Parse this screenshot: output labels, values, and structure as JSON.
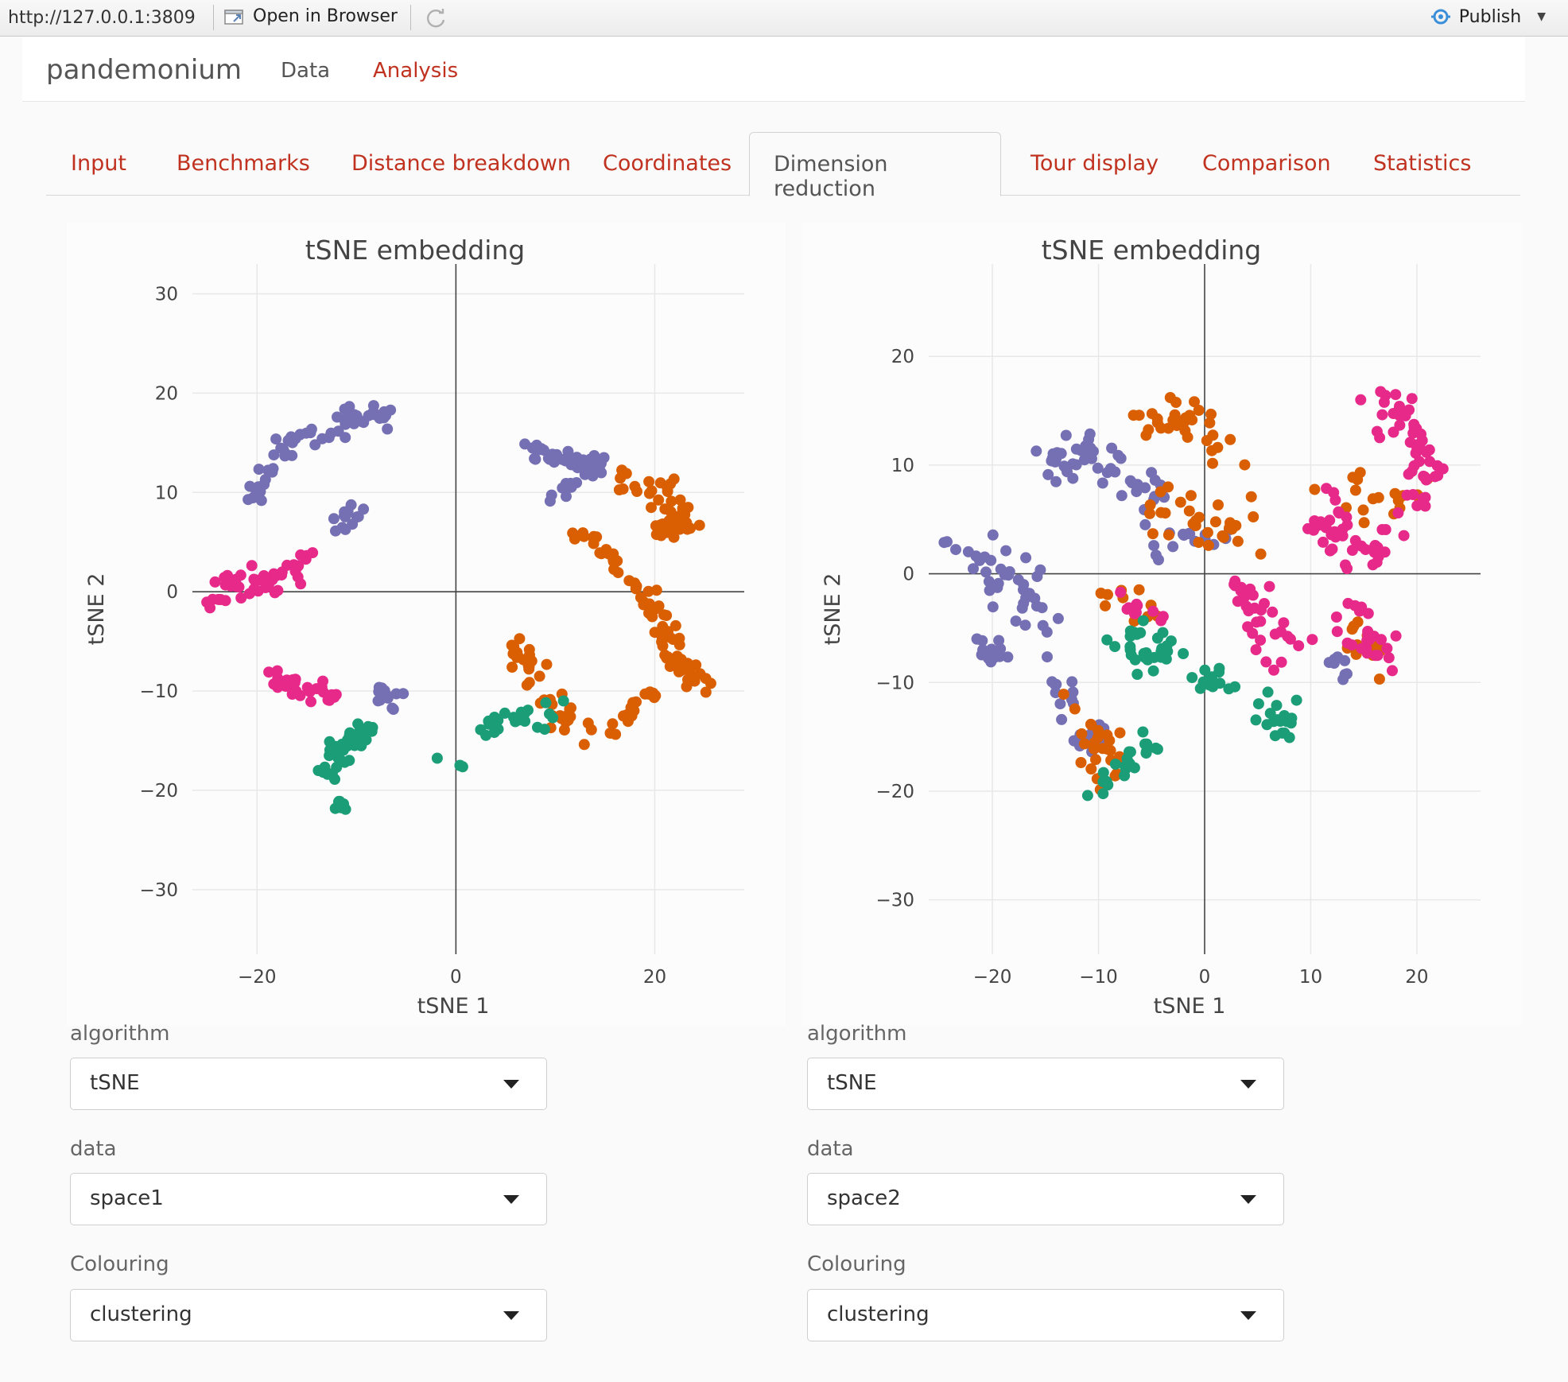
{
  "viewer": {
    "url": "http://127.0.0.1:3809",
    "open_in_browser": "Open in Browser",
    "publish": "Publish"
  },
  "app": {
    "brand": "pandemonium",
    "nav": [
      {
        "label": "Data",
        "active": false
      },
      {
        "label": "Analysis",
        "active": true
      }
    ]
  },
  "tabs": [
    {
      "label": "Input",
      "active": false
    },
    {
      "label": "Benchmarks",
      "active": false
    },
    {
      "label": "Distance breakdown",
      "active": false
    },
    {
      "label": "Coordinates",
      "active": false
    },
    {
      "label": "Dimension reduction",
      "active": true
    },
    {
      "label": "Tour display",
      "active": false
    },
    {
      "label": "Comparison",
      "active": false
    },
    {
      "label": "Statistics",
      "active": false
    }
  ],
  "colors": {
    "purple": "#7570b3",
    "orange": "#d95f02",
    "green": "#1b9e77",
    "pink": "#e7298a",
    "link_red": "#c0321f"
  },
  "chart_data": [
    {
      "type": "scatter",
      "title": "tSNE embedding",
      "xlabel": "tSNE 1",
      "ylabel": "tSNE 2",
      "xlim": [
        -26.5,
        29
      ],
      "ylim": [
        -36.5,
        33
      ],
      "xticks": [
        -20,
        0,
        20
      ],
      "yticks": [
        -30,
        -20,
        -10,
        0,
        10,
        20,
        30
      ],
      "grid": true,
      "legend": "none",
      "clusters": [
        {
          "color": "#7570b3",
          "n": 60,
          "seed": 11,
          "path": [
            [
              -20,
              9
            ],
            [
              -18,
              14
            ],
            [
              -14,
              16
            ],
            [
              -10,
              17.5
            ],
            [
              -6,
              18
            ]
          ],
          "spread": 0.9
        },
        {
          "color": "#7570b3",
          "n": 14,
          "seed": 12,
          "path": [
            [
              -12,
              6
            ],
            [
              -10,
              9
            ]
          ],
          "spread": 0.8
        },
        {
          "color": "#7570b3",
          "n": 14,
          "seed": 13,
          "path": [
            [
              -8,
              -10
            ],
            [
              -6,
              -11
            ]
          ],
          "spread": 0.9
        },
        {
          "color": "#e7298a",
          "n": 46,
          "seed": 14,
          "path": [
            [
              -25,
              -1
            ],
            [
              -22,
              1
            ],
            [
              -18,
              1
            ],
            [
              -15,
              3
            ]
          ],
          "spread": 1.2
        },
        {
          "color": "#e7298a",
          "n": 28,
          "seed": 15,
          "path": [
            [
              -19,
              -8
            ],
            [
              -16,
              -10
            ],
            [
              -12,
              -10
            ]
          ],
          "spread": 0.8
        },
        {
          "color": "#7570b3",
          "n": 50,
          "seed": 16,
          "path": [
            [
              7,
              14.5
            ],
            [
              11,
              13.5
            ],
            [
              14.5,
              13
            ],
            [
              13,
              12
            ]
          ],
          "spread": 0.9
        },
        {
          "color": "#7570b3",
          "n": 10,
          "seed": 17,
          "path": [
            [
              10,
              10
            ],
            [
              12,
              11
            ]
          ],
          "spread": 0.8
        },
        {
          "color": "#d95f02",
          "n": 48,
          "seed": 18,
          "path": [
            [
              16,
              12
            ],
            [
              21,
              10
            ],
            [
              23,
              7
            ],
            [
              20,
              6.5
            ]
          ],
          "spread": 1.1
        },
        {
          "color": "#d95f02",
          "n": 26,
          "seed": 19,
          "path": [
            [
              12,
              6
            ],
            [
              15,
              4
            ],
            [
              17,
              2
            ],
            [
              19,
              -1
            ]
          ],
          "spread": 0.8
        },
        {
          "color": "#d95f02",
          "n": 48,
          "seed": 20,
          "path": [
            [
              19,
              -1
            ],
            [
              21,
              -4
            ],
            [
              22,
              -7
            ],
            [
              25,
              -9
            ]
          ],
          "spread": 1.0
        },
        {
          "color": "#d95f02",
          "n": 38,
          "seed": 21,
          "path": [
            [
              6,
              -5
            ],
            [
              8,
              -8
            ],
            [
              10,
              -12
            ],
            [
              13,
              -14
            ]
          ],
          "spread": 1.2
        },
        {
          "color": "#d95f02",
          "n": 18,
          "seed": 22,
          "path": [
            [
              15,
              -14
            ],
            [
              18,
              -12
            ],
            [
              20,
              -10
            ]
          ],
          "spread": 0.6
        },
        {
          "color": "#1b9e77",
          "n": 40,
          "seed": 23,
          "path": [
            [
              -13,
              -18
            ],
            [
              -11,
              -15
            ],
            [
              -9,
              -14
            ]
          ],
          "spread": 1.0
        },
        {
          "color": "#1b9e77",
          "n": 10,
          "seed": 24,
          "path": [
            [
              -12,
              -21
            ],
            [
              -11,
              -22
            ]
          ],
          "spread": 0.6
        },
        {
          "color": "#1b9e77",
          "n": 26,
          "seed": 25,
          "path": [
            [
              3,
              -14
            ],
            [
              5,
              -12.5
            ],
            [
              8,
              -13
            ],
            [
              10,
              -12
            ]
          ],
          "spread": 0.9
        },
        {
          "color": "#1b9e77",
          "n": 4,
          "seed": 26,
          "path": [
            [
              -2,
              -17
            ],
            [
              1.5,
              -17.5
            ]
          ],
          "spread": 0.3
        }
      ]
    },
    {
      "type": "scatter",
      "title": "tSNE embedding",
      "xlabel": "tSNE 1",
      "ylabel": "tSNE 2",
      "xlim": [
        -26,
        26
      ],
      "ylim": [
        -35,
        28.5
      ],
      "xticks": [
        -20,
        -10,
        0,
        10,
        20
      ],
      "yticks": [
        -30,
        -20,
        -10,
        0,
        10,
        20
      ],
      "grid": true,
      "legend": "none",
      "clusters": [
        {
          "color": "#7570b3",
          "n": 40,
          "seed": 31,
          "path": [
            [
              -23,
              3
            ],
            [
              -20,
              1
            ],
            [
              -17,
              -2
            ],
            [
              -15,
              -5
            ]
          ],
          "spread": 2.0
        },
        {
          "color": "#7570b3",
          "n": 18,
          "seed": 32,
          "path": [
            [
              -21,
              -6
            ],
            [
              -19,
              -8
            ]
          ],
          "spread": 1.2
        },
        {
          "color": "#7570b3",
          "n": 50,
          "seed": 33,
          "path": [
            [
              -15,
              10
            ],
            [
              -11,
              12
            ],
            [
              -8,
              9
            ],
            [
              -4,
              7
            ]
          ],
          "spread": 1.7
        },
        {
          "color": "#7570b3",
          "n": 22,
          "seed": 34,
          "path": [
            [
              -14,
              -9
            ],
            [
              -12,
              -14
            ],
            [
              -10,
              -17
            ]
          ],
          "spread": 1.5
        },
        {
          "color": "#7570b3",
          "n": 16,
          "seed": 35,
          "path": [
            [
              -6,
              3
            ],
            [
              -2,
              2
            ],
            [
              2,
              4
            ]
          ],
          "spread": 1.8
        },
        {
          "color": "#7570b3",
          "n": 8,
          "seed": 36,
          "path": [
            [
              12,
              -8
            ],
            [
              14,
              -9
            ]
          ],
          "spread": 1.0
        },
        {
          "color": "#d95f02",
          "n": 36,
          "seed": 37,
          "path": [
            [
              -6,
              14
            ],
            [
              -1,
              14
            ],
            [
              3,
              11
            ]
          ],
          "spread": 1.5
        },
        {
          "color": "#d95f02",
          "n": 30,
          "seed": 38,
          "path": [
            [
              -5,
              6
            ],
            [
              0,
              5
            ],
            [
              4,
              4
            ]
          ],
          "spread": 1.8
        },
        {
          "color": "#d95f02",
          "n": 28,
          "seed": 39,
          "path": [
            [
              -12,
              -12
            ],
            [
              -10,
              -16
            ],
            [
              -8,
              -18
            ]
          ],
          "spread": 1.5
        },
        {
          "color": "#d95f02",
          "n": 18,
          "seed": 40,
          "path": [
            [
              12,
              9
            ],
            [
              16,
              6
            ],
            [
              20,
              8
            ]
          ],
          "spread": 1.6
        },
        {
          "color": "#d95f02",
          "n": 12,
          "seed": 41,
          "path": [
            [
              14,
              -5
            ],
            [
              16,
              -8
            ]
          ],
          "spread": 1.3
        },
        {
          "color": "#d95f02",
          "n": 10,
          "seed": 42,
          "path": [
            [
              -9,
              -1
            ],
            [
              -6,
              -3
            ]
          ],
          "spread": 1.5
        },
        {
          "color": "#e7298a",
          "n": 50,
          "seed": 43,
          "path": [
            [
              16,
              16
            ],
            [
              19,
              14
            ],
            [
              21,
              10
            ],
            [
              20,
              6
            ]
          ],
          "spread": 1.5
        },
        {
          "color": "#e7298a",
          "n": 40,
          "seed": 44,
          "path": [
            [
              11,
              8
            ],
            [
              12,
              4
            ],
            [
              14,
              2
            ],
            [
              18,
              3
            ]
          ],
          "spread": 1.5
        },
        {
          "color": "#e7298a",
          "n": 32,
          "seed": 45,
          "path": [
            [
              3,
              -2
            ],
            [
              6,
              -5
            ],
            [
              9,
              -7
            ]
          ],
          "spread": 1.8
        },
        {
          "color": "#e7298a",
          "n": 24,
          "seed": 46,
          "path": [
            [
              13,
              -3
            ],
            [
              15,
              -6
            ],
            [
              17,
              -8
            ]
          ],
          "spread": 1.4
        },
        {
          "color": "#e7298a",
          "n": 10,
          "seed": 47,
          "path": [
            [
              -7,
              -3
            ],
            [
              -5,
              -4
            ]
          ],
          "spread": 1.0
        },
        {
          "color": "#1b9e77",
          "n": 30,
          "seed": 48,
          "path": [
            [
              -7,
              -6
            ],
            [
              -5,
              -7
            ],
            [
              -3,
              -8
            ]
          ],
          "spread": 1.6
        },
        {
          "color": "#1b9e77",
          "n": 14,
          "seed": 49,
          "path": [
            [
              0,
              -9
            ],
            [
              2,
              -10
            ]
          ],
          "spread": 1.0
        },
        {
          "color": "#1b9e77",
          "n": 18,
          "seed": 50,
          "path": [
            [
              6,
              -12
            ],
            [
              8,
              -15
            ]
          ],
          "spread": 1.1
        },
        {
          "color": "#1b9e77",
          "n": 22,
          "seed": 51,
          "path": [
            [
              -10,
              -19
            ],
            [
              -7,
              -16
            ],
            [
              -5,
              -17
            ]
          ],
          "spread": 1.4
        }
      ]
    }
  ],
  "controls": [
    {
      "algorithm_label": "algorithm",
      "algorithm_value": "tSNE",
      "data_label": "data",
      "data_value": "space1",
      "colouring_label": "Colouring",
      "colouring_value": "clustering"
    },
    {
      "algorithm_label": "algorithm",
      "algorithm_value": "tSNE",
      "data_label": "data",
      "data_value": "space2",
      "colouring_label": "Colouring",
      "colouring_value": "clustering"
    }
  ]
}
